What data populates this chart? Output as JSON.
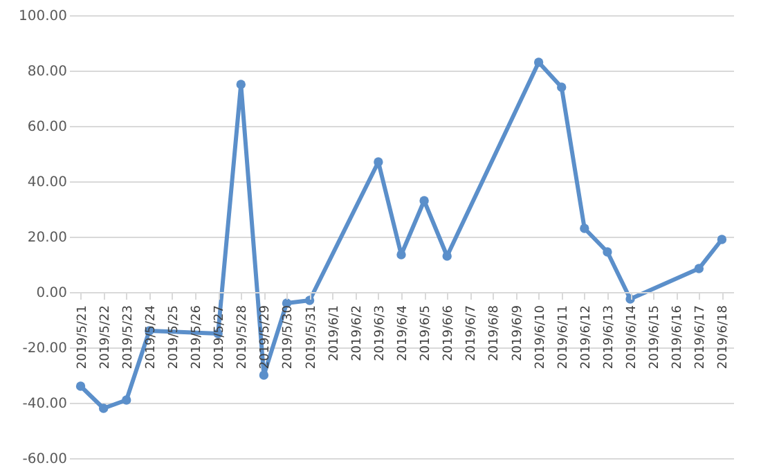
{
  "chart_data": {
    "type": "line",
    "categories": [
      "2019/5/21",
      "2019/5/22",
      "2019/5/23",
      "2019/5/24",
      "2019/5/25",
      "2019/5/26",
      "2019/5/27",
      "2019/5/28",
      "2019/5/29",
      "2019/5/30",
      "2019/5/31",
      "2019/6/1",
      "2019/6/2",
      "2019/6/3",
      "2019/6/4",
      "2019/6/5",
      "2019/6/6",
      "2019/6/7",
      "2019/6/8",
      "2019/6/9",
      "2019/6/10",
      "2019/6/11",
      "2019/6/12",
      "2019/6/13",
      "2019/6/14",
      "2019/6/15",
      "2019/6/16",
      "2019/6/17",
      "2019/6/18"
    ],
    "series": [
      {
        "color": "#5b8fca",
        "values": [
          -34,
          -42,
          -39,
          -14,
          null,
          null,
          -15,
          75,
          -30,
          -4,
          -3,
          null,
          null,
          47,
          13.5,
          33,
          13,
          null,
          null,
          null,
          83,
          74,
          23,
          14.5,
          -2.5,
          null,
          null,
          8.5,
          19
        ]
      }
    ],
    "ylim": [
      -60,
      100
    ],
    "yticks": [
      {
        "value": -60,
        "label": "-60.00"
      },
      {
        "value": -40,
        "label": "-40.00"
      },
      {
        "value": -20,
        "label": "-20.00"
      },
      {
        "value": 0,
        "label": "0.00"
      },
      {
        "value": 20,
        "label": "20.00"
      },
      {
        "value": 40,
        "label": "40.00"
      },
      {
        "value": 60,
        "label": "60.00"
      },
      {
        "value": 80,
        "label": "80.00"
      },
      {
        "value": 100,
        "label": "100.00"
      }
    ],
    "grid": "y",
    "marker": "circle",
    "line_style": "solid"
  }
}
